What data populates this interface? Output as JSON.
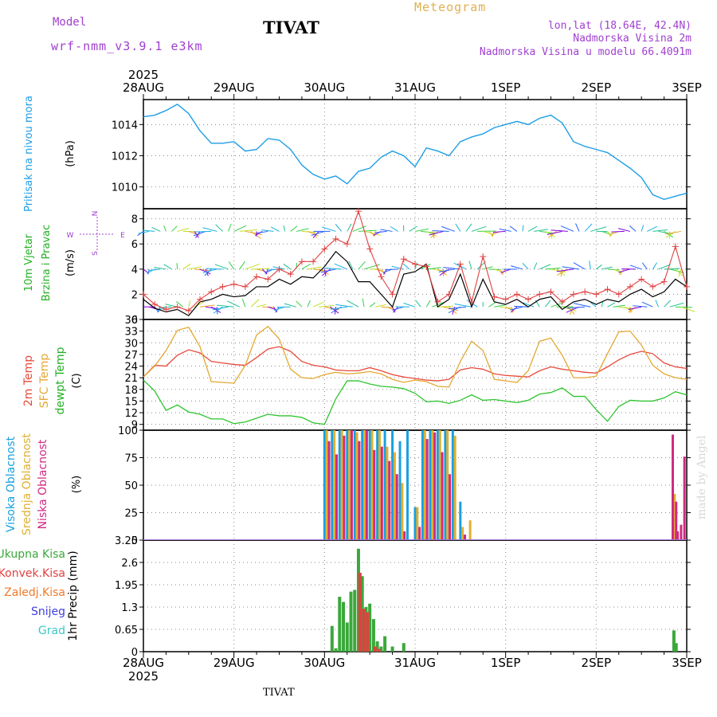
{
  "header": {
    "model_label": "Model",
    "model_name": "wrf-nmm_v3.9.1 e3km",
    "station": "TIVAT",
    "meteogram": "Meteogram",
    "lonlat": "lon,lat (18.64E, 42.4N)",
    "altitude": "Nadmorska Visina 2m",
    "model_altitude": "Nadmorska Visina u modelu 66.4091m"
  },
  "footer": {
    "station": "TIVAT",
    "watermark": "made by Angel"
  },
  "chart_data": [
    {
      "type": "line",
      "id": "pressure",
      "ylabel": "Pritisak na nivou mora",
      "units": "(hPa)",
      "color": "#1e9ee6",
      "ylim": [
        1008.6,
        1015.6
      ],
      "yticks": [
        1010,
        1012,
        1014
      ],
      "ytick_labels": [
        "1010",
        "1012",
        "1014"
      ],
      "x_hours": [
        0,
        3,
        6,
        9,
        12,
        15,
        18,
        21,
        24,
        27,
        30,
        33,
        36,
        39,
        42,
        45,
        48,
        51,
        54,
        57,
        60,
        63,
        66,
        69,
        72,
        75,
        78,
        81,
        84,
        87,
        90,
        93,
        96,
        99,
        102,
        105,
        108,
        111,
        114,
        117,
        120,
        123,
        126,
        129,
        132,
        135,
        138,
        141,
        144
      ],
      "values": [
        1014.5,
        1014.6,
        1014.9,
        1015.3,
        1014.7,
        1013.6,
        1012.8,
        1012.8,
        1012.9,
        1012.3,
        1012.4,
        1013.1,
        1013.0,
        1012.4,
        1011.4,
        1010.8,
        1010.5,
        1010.7,
        1010.2,
        1011.0,
        1011.2,
        1011.9,
        1012.3,
        1012.0,
        1011.3,
        1012.5,
        1012.3,
        1012.0,
        1012.9,
        1013.2,
        1013.4,
        1013.8,
        1014.0,
        1014.2,
        1014.0,
        1014.4,
        1014.6,
        1014.1,
        1012.9,
        1012.6,
        1012.4,
        1012.2,
        1011.7,
        1011.2,
        1010.6,
        1009.5,
        1009.2,
        1009.4,
        1009.6
      ]
    },
    {
      "type": "line",
      "id": "wind",
      "ylabel": "10m Vjetar",
      "ylabel2": "Brzina i Pravac",
      "units": "(m/s)",
      "compass": {
        "n": "N",
        "s": "S",
        "w": "W",
        "e": "E"
      },
      "ylim": [
        0,
        8.8
      ],
      "yticks": [
        0,
        2,
        4,
        6,
        8
      ],
      "ytick_labels": [
        "0",
        "2",
        "4",
        "6",
        "8"
      ],
      "x_hours": [
        0,
        3,
        6,
        9,
        12,
        15,
        18,
        21,
        24,
        27,
        30,
        33,
        36,
        39,
        42,
        45,
        48,
        51,
        54,
        57,
        60,
        63,
        66,
        69,
        72,
        75,
        78,
        81,
        84,
        87,
        90,
        93,
        96,
        99,
        102,
        105,
        108,
        111,
        114,
        117,
        120,
        123,
        126,
        129,
        132,
        135,
        138,
        141,
        144
      ],
      "series": [
        {
          "name": "speed",
          "color": "#000000",
          "values": [
            1.6,
            0.9,
            0.6,
            0.8,
            0.3,
            1.4,
            1.6,
            2.0,
            1.8,
            1.9,
            2.6,
            2.6,
            3.2,
            2.8,
            3.4,
            3.3,
            4.2,
            5.4,
            4.6,
            3.0,
            3.0,
            2.0,
            1.0,
            3.6,
            3.8,
            4.4,
            1.0,
            1.6,
            3.6,
            1.0,
            3.2,
            1.4,
            1.2,
            1.6,
            1.0,
            1.6,
            1.8,
            0.8,
            1.4,
            1.6,
            1.2,
            1.6,
            1.4,
            2.0,
            2.4,
            1.8,
            2.2,
            3.2,
            2.6
          ]
        },
        {
          "name": "gust",
          "color": "#e04040",
          "values": [
            2.0,
            1.2,
            0.8,
            1.0,
            0.7,
            1.6,
            2.2,
            2.6,
            2.8,
            2.6,
            3.4,
            3.2,
            4.0,
            3.6,
            4.6,
            4.6,
            5.6,
            6.4,
            6.0,
            8.6,
            5.6,
            3.4,
            2.0,
            4.8,
            4.4,
            4.2,
            1.4,
            2.0,
            4.4,
            1.4,
            5.0,
            1.8,
            1.6,
            2.0,
            1.6,
            2.0,
            2.2,
            1.4,
            2.0,
            2.2,
            2.0,
            2.4,
            2.0,
            2.6,
            3.2,
            2.6,
            3.0,
            5.8,
            2.6
          ]
        }
      ]
    },
    {
      "type": "line",
      "id": "temperature",
      "ylabel": "2m Temp",
      "ylabel2": "SFC Temp",
      "ylabel3": "dewpt Temp",
      "units": "(C)",
      "ylim": [
        7.5,
        36
      ],
      "yticks": [
        9,
        12,
        15,
        18,
        21,
        24,
        27,
        30,
        33,
        36
      ],
      "ytick_labels": [
        "9",
        "12",
        "15",
        "18",
        "21",
        "24",
        "27",
        "30",
        "33",
        "36"
      ],
      "x_hours": [
        0,
        3,
        6,
        9,
        12,
        15,
        18,
        21,
        24,
        27,
        30,
        33,
        36,
        39,
        42,
        45,
        48,
        51,
        54,
        57,
        60,
        63,
        66,
        69,
        72,
        75,
        78,
        81,
        84,
        87,
        90,
        93,
        96,
        99,
        102,
        105,
        108,
        111,
        114,
        117,
        120,
        123,
        126,
        129,
        132,
        135,
        138,
        141,
        144
      ],
      "series": [
        {
          "name": "2m Temp",
          "color": "#e84a3c",
          "values": [
            21.2,
            24.2,
            24.0,
            26.8,
            28.2,
            27.4,
            25.2,
            24.8,
            24.4,
            24.2,
            26.2,
            28.4,
            29.0,
            27.8,
            25.2,
            24.2,
            23.8,
            23.0,
            22.8,
            22.8,
            23.6,
            22.8,
            21.8,
            21.2,
            20.8,
            20.4,
            20.2,
            20.6,
            23.0,
            23.6,
            23.2,
            22.0,
            21.6,
            21.4,
            21.2,
            22.8,
            23.8,
            23.2,
            22.8,
            22.4,
            22.2,
            23.8,
            25.6,
            27.0,
            27.8,
            27.2,
            24.8,
            23.8,
            23.4
          ]
        },
        {
          "name": "SFC Temp",
          "color": "#e4a832",
          "values": [
            21.2,
            24.0,
            28.0,
            33.2,
            34.0,
            29.0,
            20.0,
            19.8,
            19.6,
            24.2,
            32.0,
            34.2,
            31.0,
            23.2,
            21.0,
            20.8,
            21.8,
            22.4,
            22.0,
            22.2,
            22.6,
            22.0,
            20.6,
            19.8,
            20.4,
            20.0,
            18.8,
            18.6,
            25.2,
            30.4,
            28.0,
            20.6,
            20.2,
            19.8,
            22.8,
            30.4,
            31.2,
            26.8,
            21.0,
            21.0,
            21.4,
            27.2,
            32.8,
            33.0,
            29.4,
            24.2,
            22.0,
            21.0,
            20.6
          ]
        },
        {
          "name": "dewpt Temp",
          "color": "#2ec42e",
          "values": [
            20.4,
            17.6,
            12.6,
            14.0,
            12.2,
            11.6,
            10.4,
            10.4,
            9.2,
            9.6,
            10.6,
            11.6,
            11.2,
            11.2,
            10.8,
            9.4,
            9.0,
            15.6,
            20.2,
            20.2,
            19.4,
            18.8,
            18.6,
            18.2,
            17.0,
            14.8,
            15.0,
            14.4,
            15.2,
            16.6,
            15.2,
            15.4,
            15.0,
            14.6,
            15.2,
            16.8,
            17.2,
            18.4,
            16.2,
            16.2,
            12.8,
            9.8,
            13.6,
            15.2,
            15.0,
            15.0,
            15.8,
            17.4,
            16.6
          ]
        }
      ]
    },
    {
      "type": "bar",
      "id": "clouds",
      "ylabel": "Visoka Oblacnost",
      "ylabel2": "Srednja Oblacnost",
      "ylabel3": "Niska Oblacnost",
      "units": "(%)",
      "ylim": [
        0,
        100
      ],
      "yticks": [
        0,
        25,
        50,
        75,
        100
      ],
      "ytick_labels": [
        "0",
        "25",
        "50",
        "75",
        "100"
      ],
      "series": [
        {
          "name": "Visoka",
          "color": "#1aa0e0",
          "x_hours": [
            48,
            50,
            52,
            54,
            56,
            58,
            60,
            62,
            64,
            66,
            68,
            70,
            72,
            74,
            76,
            78,
            80,
            82,
            84
          ],
          "values": [
            100,
            100,
            100,
            100,
            100,
            100,
            100,
            100,
            100,
            100,
            90,
            100,
            30,
            100,
            100,
            100,
            100,
            100,
            35
          ]
        },
        {
          "name": "Srednja",
          "color": "#e0b030",
          "x_hours": [
            48.6,
            50.6,
            52.6,
            54.6,
            56.6,
            58.6,
            60.6,
            62.6,
            64.6,
            66.6,
            68.6,
            72.6,
            74.6,
            76.6,
            78.6,
            80.6,
            82.6,
            84.6,
            86.6,
            140.8
          ],
          "values": [
            100,
            100,
            100,
            100,
            98,
            100,
            100,
            100,
            85,
            80,
            52,
            30,
            100,
            100,
            100,
            100,
            95,
            12,
            18,
            42
          ]
        },
        {
          "name": "Niska",
          "color": "#d02a82",
          "x_hours": [
            49.2,
            51.2,
            53.2,
            55.2,
            57.2,
            59.2,
            61.2,
            63.2,
            65.2,
            67.2,
            69.2,
            73.2,
            75.2,
            77.2,
            79.2,
            81.2,
            85.2,
            140.3,
            141.2,
            141.6,
            142.5,
            143.4
          ],
          "values": [
            90,
            78,
            95,
            100,
            90,
            100,
            82,
            85,
            72,
            60,
            8,
            12,
            92,
            98,
            80,
            60,
            5,
            96,
            35,
            8,
            14,
            76
          ]
        }
      ]
    },
    {
      "type": "bar",
      "id": "precipitation",
      "ylabel": "1hr Precip (mm)",
      "legend": [
        "Ukupna Kisa",
        "Konvek.Kisa",
        "Zaledj.Kisa",
        "Snijeg",
        "Grad"
      ],
      "ylim": [
        0,
        3.25
      ],
      "yticks": [
        0,
        0.65,
        1.3,
        1.95,
        2.6,
        3.25
      ],
      "ytick_labels": [
        "0",
        "0.65",
        "1.3",
        "1.95",
        "2.6",
        "3.25"
      ],
      "series": [
        {
          "name": "Ukupna Kisa",
          "color": "#3aa83a",
          "x_hours": [
            50,
            51,
            52,
            53,
            54,
            55,
            56,
            57,
            58,
            59,
            60,
            61,
            62,
            63,
            64,
            66,
            69,
            140.6,
            141.2
          ],
          "values": [
            0.75,
            0.1,
            1.6,
            1.45,
            0.85,
            1.75,
            1.8,
            3.0,
            2.2,
            1.3,
            1.4,
            0.95,
            0.3,
            0.15,
            0.45,
            0.15,
            0.25,
            0.62,
            0.25
          ]
        },
        {
          "name": "Konvek.Kisa",
          "color": "#e04040",
          "x_hours": [
            57.4,
            58.4,
            59.4,
            61.4,
            62.4
          ],
          "values": [
            2.3,
            1.25,
            1.15,
            0.15,
            0.08
          ]
        },
        {
          "name": "Zaledj.Kisa",
          "color": "#f07b2c",
          "x_hours": [],
          "values": []
        },
        {
          "name": "Snijeg",
          "color": "#4040e0",
          "x_hours": [],
          "values": []
        },
        {
          "name": "Grad",
          "color": "#3cc8c8",
          "x_hours": [],
          "values": []
        }
      ]
    }
  ],
  "x_axis": {
    "ticks": [
      "28AUG",
      "29AUG",
      "30AUG",
      "31AUG",
      "1SEP",
      "2SEP",
      "3SEP"
    ],
    "year": "2025",
    "range_hours": [
      0,
      144
    ]
  }
}
